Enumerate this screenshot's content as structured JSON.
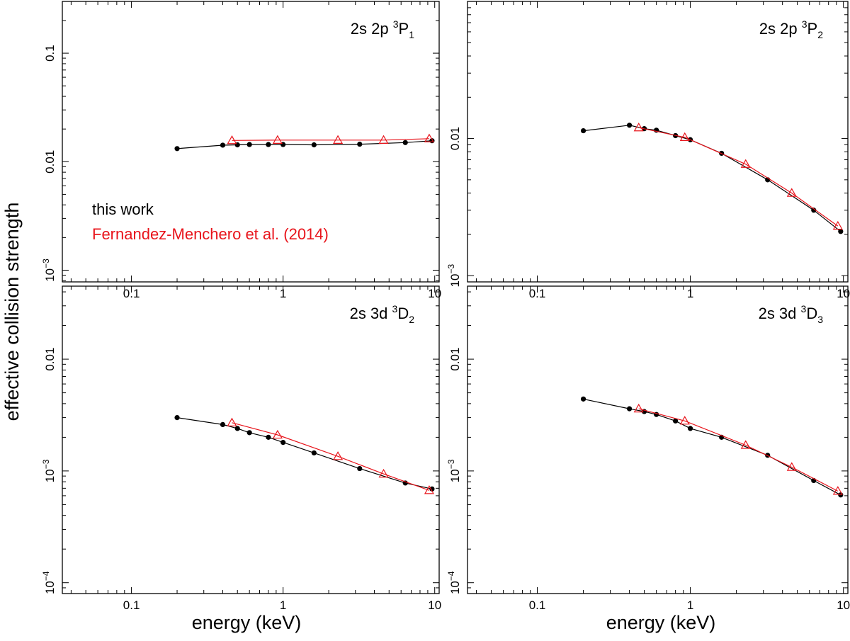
{
  "ylabel": "effective collision strength",
  "xlabel": "energy (keV)",
  "legend": {
    "this_work": "this work",
    "reference": "Fernandez-Menchero et al. (2014)"
  },
  "colors": {
    "this_work": "#000000",
    "reference": "#e8141b"
  },
  "chart_data": [
    {
      "type": "line",
      "title": {
        "main": "2s 2p ",
        "sup": "3",
        "term": "P",
        "sub": "1"
      },
      "xscale": "log",
      "yscale": "log",
      "xlim": [
        0.035,
        10.7
      ],
      "ylim": [
        0.00078,
        0.3
      ],
      "xticks": [
        {
          "v": 0.1,
          "label": "0.1"
        },
        {
          "v": 1,
          "label": "1"
        },
        {
          "v": 10,
          "label": "10"
        }
      ],
      "yticks": [
        {
          "v": 0.1,
          "label": "0.1"
        },
        {
          "v": 0.01,
          "label": "0.01"
        },
        {
          "v": 0.001,
          "base": "10",
          "exp": "−3"
        }
      ],
      "legend_shown": true,
      "series": [
        {
          "name": "this work",
          "marker": "dot",
          "x": [
            0.2,
            0.4,
            0.5,
            0.6,
            0.8,
            1.0,
            1.6,
            3.2,
            6.4,
            9.6
          ],
          "y": [
            0.0132,
            0.0142,
            0.0143,
            0.0144,
            0.0144,
            0.0144,
            0.0143,
            0.0145,
            0.015,
            0.0156
          ]
        },
        {
          "name": "Fernandez-Menchero et al. (2014)",
          "marker": "triangle",
          "x": [
            0.46,
            0.92,
            2.3,
            4.6,
            9.2
          ],
          "y": [
            0.0157,
            0.0158,
            0.0158,
            0.0158,
            0.0163
          ]
        }
      ]
    },
    {
      "type": "line",
      "title": {
        "main": "2s 2p ",
        "sup": "3",
        "term": "P",
        "sub": "2"
      },
      "xscale": "log",
      "yscale": "log",
      "xlim": [
        0.035,
        10.7
      ],
      "ylim": [
        0.0009,
        0.1
      ],
      "xticks": [
        {
          "v": 0.1,
          "label": "0.1"
        },
        {
          "v": 1,
          "label": "1"
        },
        {
          "v": 10,
          "label": "10"
        }
      ],
      "yticks": [
        {
          "v": 0.01,
          "label": "0.01"
        },
        {
          "v": 0.001,
          "base": "10",
          "exp": "−3"
        }
      ],
      "legend_shown": false,
      "series": [
        {
          "name": "this work",
          "marker": "dot",
          "x": [
            0.2,
            0.4,
            0.5,
            0.6,
            0.8,
            1.0,
            1.6,
            3.2,
            6.4,
            9.6
          ],
          "y": [
            0.0114,
            0.0125,
            0.0118,
            0.0115,
            0.0105,
            0.0098,
            0.0078,
            0.005,
            0.003,
            0.0021
          ]
        },
        {
          "name": "Fernandez-Menchero et al. (2014)",
          "marker": "triangle",
          "x": [
            0.46,
            0.92,
            2.3,
            4.6,
            9.2
          ],
          "y": [
            0.012,
            0.0102,
            0.0065,
            0.004,
            0.0023
          ]
        }
      ]
    },
    {
      "type": "line",
      "title": {
        "main": "2s 3d ",
        "sup": "3",
        "term": "D",
        "sub": "2"
      },
      "xscale": "log",
      "yscale": "log",
      "xlim": [
        0.035,
        10.7
      ],
      "ylim": [
        8e-05,
        0.045
      ],
      "xticks": [
        {
          "v": 0.1,
          "label": "0.1"
        },
        {
          "v": 1,
          "label": "1"
        },
        {
          "v": 10,
          "label": "10"
        }
      ],
      "yticks": [
        {
          "v": 0.01,
          "label": "0.01"
        },
        {
          "v": 0.001,
          "base": "10",
          "exp": "−3"
        },
        {
          "v": 0.0001,
          "base": "10",
          "exp": "−4"
        }
      ],
      "legend_shown": false,
      "series": [
        {
          "name": "this work",
          "marker": "dot",
          "x": [
            0.2,
            0.4,
            0.5,
            0.6,
            0.8,
            1.0,
            1.6,
            3.2,
            6.4,
            9.6
          ],
          "y": [
            0.003,
            0.0026,
            0.0024,
            0.0022,
            0.002,
            0.0018,
            0.00145,
            0.00105,
            0.00078,
            0.00069
          ]
        },
        {
          "name": "Fernandez-Menchero et al. (2014)",
          "marker": "triangle",
          "x": [
            0.46,
            0.92,
            2.3,
            4.6,
            9.2
          ],
          "y": [
            0.0027,
            0.0021,
            0.00135,
            0.00094,
            0.00067
          ]
        }
      ]
    },
    {
      "type": "line",
      "title": {
        "main": "2s 3d ",
        "sup": "3",
        "term": "D",
        "sub": "3"
      },
      "xscale": "log",
      "yscale": "log",
      "xlim": [
        0.035,
        10.7
      ],
      "ylim": [
        8e-05,
        0.045
      ],
      "xticks": [
        {
          "v": 0.1,
          "label": "0.1"
        },
        {
          "v": 1,
          "label": "1"
        },
        {
          "v": 10,
          "label": "10"
        }
      ],
      "yticks": [
        {
          "v": 0.01,
          "label": "0.01"
        },
        {
          "v": 0.001,
          "base": "10",
          "exp": "−3"
        },
        {
          "v": 0.0001,
          "base": "10",
          "exp": "−4"
        }
      ],
      "legend_shown": false,
      "series": [
        {
          "name": "this work",
          "marker": "dot",
          "x": [
            0.2,
            0.4,
            0.5,
            0.6,
            0.8,
            1.0,
            1.6,
            3.2,
            6.4,
            9.6
          ],
          "y": [
            0.0044,
            0.0036,
            0.0034,
            0.0032,
            0.0028,
            0.0024,
            0.002,
            0.00138,
            0.00082,
            0.00061
          ]
        },
        {
          "name": "Fernandez-Menchero et al. (2014)",
          "marker": "triangle",
          "x": [
            0.46,
            0.92,
            2.3,
            4.6,
            9.2
          ],
          "y": [
            0.0036,
            0.0028,
            0.0017,
            0.00108,
            0.00066
          ]
        }
      ]
    }
  ]
}
